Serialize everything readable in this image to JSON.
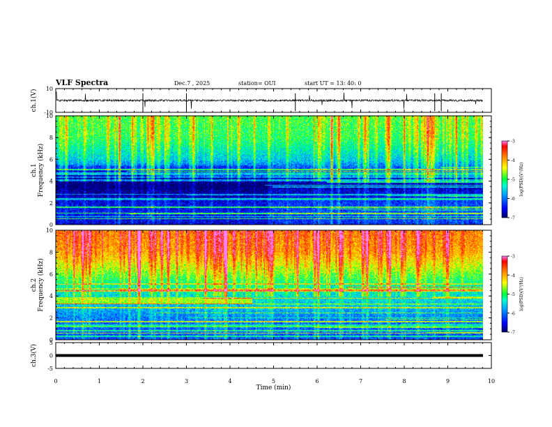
{
  "header": {
    "title": "VLF Spectra",
    "date": "Dec.7 , 2025",
    "station": "station= OUI",
    "start_ut": "start  UT =   13: 40: 0"
  },
  "colors": {
    "cbar_stops": [
      "#000060",
      "#0000ff",
      "#00a0ff",
      "#00ffcc",
      "#00ff40",
      "#ffff00",
      "#ff8000",
      "#ff0000",
      "#ff80ff"
    ]
  },
  "chart_data": [
    {
      "id": "ch1_waveform",
      "type": "line",
      "ylabel": "ch.1(V)",
      "ylim": [
        -10,
        10
      ],
      "yticks": [
        "10",
        "-10"
      ],
      "baseline_value": 0,
      "xlim": [
        0,
        10
      ]
    },
    {
      "id": "ch1_spectrogram",
      "type": "heatmap",
      "ylabel_lines": [
        "ch.1",
        "Frequency  (kHz)"
      ],
      "ylim": [
        0,
        10
      ],
      "yticks": [
        "0",
        "2",
        "4",
        "6",
        "8",
        "10"
      ],
      "xlim": [
        0,
        10
      ],
      "data_end_min": 9.8,
      "colorbar": {
        "label": "log(PSD)(V²/Hz)",
        "range": [
          -7,
          -3
        ],
        "ticks": [
          "-3",
          "-4",
          "-5",
          "-6",
          "-7"
        ]
      },
      "profile_log_psd": [
        {
          "khz": 0.0,
          "lv": -6.4
        },
        {
          "khz": 1.0,
          "lv": -6.2
        },
        {
          "khz": 2.0,
          "lv": -6.3
        },
        {
          "khz": 3.5,
          "lv": -6.8
        },
        {
          "khz": 4.5,
          "lv": -6.6
        },
        {
          "khz": 6.0,
          "lv": -5.6
        },
        {
          "khz": 8.0,
          "lv": -5.0
        },
        {
          "khz": 10.0,
          "lv": -4.9
        }
      ]
    },
    {
      "id": "ch2_spectrogram",
      "type": "heatmap",
      "ylabel_lines": [
        "ch.2",
        "Frequency  (kHz)"
      ],
      "ylim": [
        0,
        10
      ],
      "yticks": [
        "0",
        "2",
        "4",
        "6",
        "8",
        "10"
      ],
      "xlim": [
        0,
        10
      ],
      "data_end_min": 9.8,
      "colorbar": {
        "label": "log(PSD)(V²/Hz)",
        "range": [
          -7,
          -3
        ],
        "ticks": [
          "-3",
          "-4",
          "-5",
          "-6",
          "-7"
        ]
      },
      "profile_log_psd": [
        {
          "khz": 0.0,
          "lv": -6.2
        },
        {
          "khz": 1.5,
          "lv": -6.1
        },
        {
          "khz": 3.5,
          "lv": -5.6
        },
        {
          "khz": 5.0,
          "lv": -5.3
        },
        {
          "khz": 6.5,
          "lv": -4.6
        },
        {
          "khz": 8.0,
          "lv": -4.0
        },
        {
          "khz": 10.0,
          "lv": -3.8
        }
      ]
    },
    {
      "id": "ch3_waveform",
      "type": "line",
      "ylabel": "ch.3(V)",
      "ylim": [
        -5,
        5
      ],
      "yticks": [
        "5",
        "0",
        "-5"
      ],
      "baseline_value": 0,
      "xlim": [
        0,
        10
      ]
    }
  ],
  "xaxis": {
    "label": "Time  (min)",
    "ticks": [
      "0",
      "1",
      "2",
      "3",
      "4",
      "5",
      "6",
      "7",
      "8",
      "9",
      "10"
    ]
  }
}
